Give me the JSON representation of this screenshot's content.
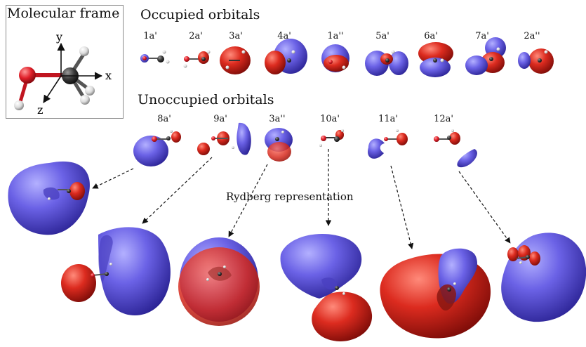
{
  "frame": {
    "title": "Molecular frame",
    "axes": {
      "y": "y",
      "x": "x",
      "z": "z"
    }
  },
  "occupied": {
    "title": "Occupied orbitals",
    "labels": [
      "1a'",
      "2a'",
      "3a'",
      "4a'",
      "1a''",
      "5a'",
      "6a'",
      "7a'",
      "2a''"
    ]
  },
  "unoccupied": {
    "title": "Unoccupied orbitals",
    "labels": [
      "8a'",
      "9a'",
      "3a''",
      "10a'",
      "11a'",
      "12a'"
    ]
  },
  "rydberg_label": "Rydberg representation",
  "colors": {
    "positive_lobe": "#d8281f",
    "negative_lobe": "#6a5ee0",
    "oxygen": "#e0202a",
    "carbon": "#333333",
    "hydrogen": "#e6e6e6"
  }
}
